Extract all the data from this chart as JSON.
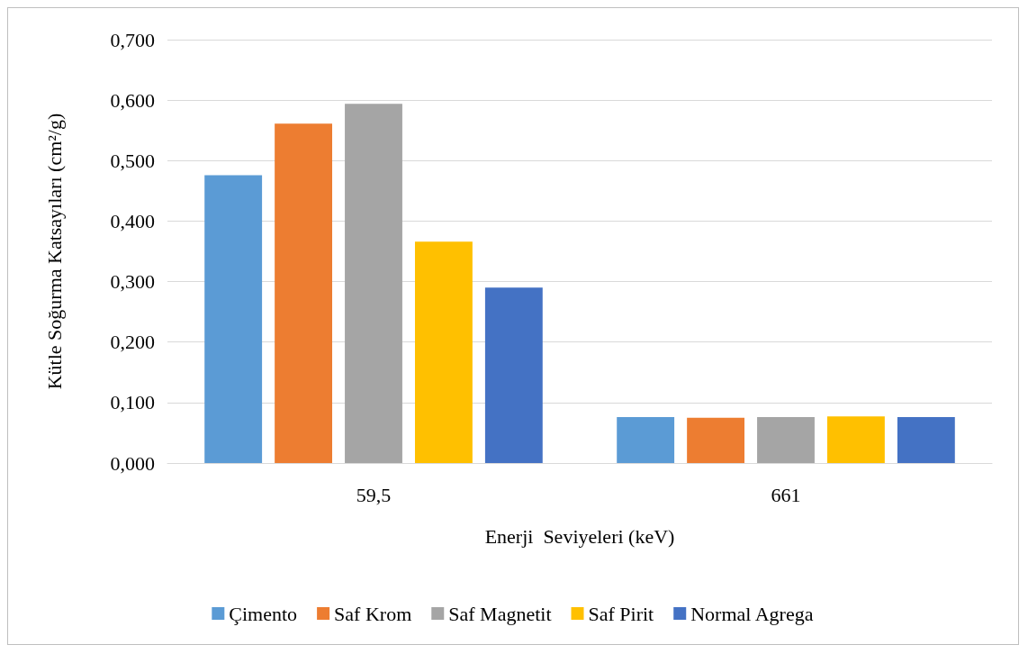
{
  "chart_data": {
    "type": "bar",
    "xlabel": "Enerji  Seviyeleri (keV)",
    "ylabel": "Kütle Soğurma Katsayıları (cm²/g)",
    "categories": [
      "59,5",
      "661"
    ],
    "series": [
      {
        "name": "Çimento",
        "color": "#5b9bd5",
        "values": [
          0.476,
          0.076
        ]
      },
      {
        "name": "Saf Krom",
        "color": "#ed7d31",
        "values": [
          0.561,
          0.075
        ]
      },
      {
        "name": "Saf Magnetit",
        "color": "#a5a5a5",
        "values": [
          0.594,
          0.076
        ]
      },
      {
        "name": "Saf Pirit",
        "color": "#ffc000",
        "values": [
          0.366,
          0.077
        ]
      },
      {
        "name": "Normal Agrega",
        "color": "#4472c4",
        "values": [
          0.29,
          0.076
        ]
      }
    ],
    "ylim": [
      0,
      0.7
    ],
    "yticks": [
      {
        "value": 0,
        "label": "0,000"
      },
      {
        "value": 0.1,
        "label": "0,100"
      },
      {
        "value": 0.2,
        "label": "0,200"
      },
      {
        "value": 0.3,
        "label": "0,300"
      },
      {
        "value": 0.4,
        "label": "0,400"
      },
      {
        "value": 0.5,
        "label": "0,500"
      },
      {
        "value": 0.6,
        "label": "0,600"
      },
      {
        "value": 0.7,
        "label": "0,700"
      }
    ],
    "grid": "y",
    "legend": "bottom"
  }
}
